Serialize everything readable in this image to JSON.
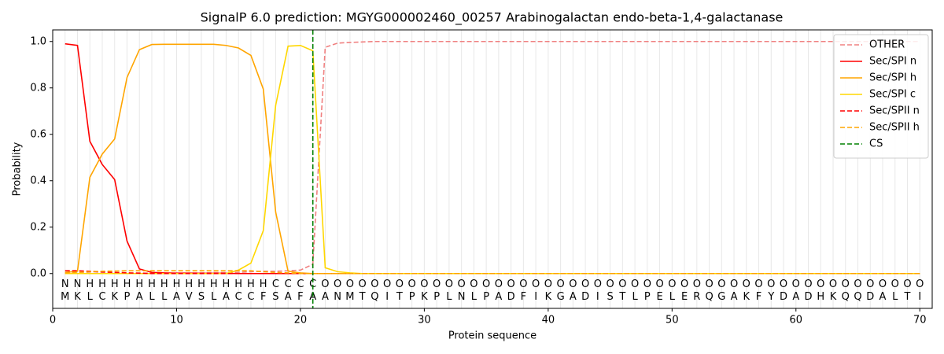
{
  "chart_data": {
    "type": "line",
    "title": "SignalP 6.0 prediction: MGYG000002460_00257 Arabinogalactan endo-beta-1,4-galactanase",
    "x_label": "Protein sequence",
    "y_label": "Probability",
    "x": [
      1,
      2,
      3,
      4,
      5,
      6,
      7,
      8,
      9,
      10,
      11,
      12,
      13,
      14,
      15,
      16,
      17,
      18,
      19,
      20,
      21,
      22,
      23,
      24,
      25,
      26,
      27,
      28,
      29,
      30,
      31,
      32,
      33,
      34,
      35,
      36,
      37,
      38,
      39,
      40,
      41,
      42,
      43,
      44,
      45,
      46,
      47,
      48,
      49,
      50,
      51,
      52,
      53,
      54,
      55,
      56,
      57,
      58,
      59,
      60,
      61,
      62,
      63,
      64,
      65,
      66,
      67,
      68,
      69,
      70
    ],
    "residues": [
      "M",
      "K",
      "L",
      "C",
      "K",
      "P",
      "A",
      "L",
      "L",
      "A",
      "V",
      "S",
      "L",
      "A",
      "C",
      "C",
      "F",
      "S",
      "A",
      "F",
      "A",
      "A",
      "N",
      "M",
      "T",
      "Q",
      "I",
      "T",
      "P",
      "K",
      "P",
      "L",
      "N",
      "L",
      "P",
      "A",
      "D",
      "F",
      "I",
      "K",
      "G",
      "A",
      "D",
      "I",
      "S",
      "T",
      "L",
      "P",
      "E",
      "L",
      "E",
      "R",
      "Q",
      "G",
      "A",
      "K",
      "F",
      "Y",
      "D",
      "A",
      "D",
      "H",
      "K",
      "Q",
      "Q",
      "D",
      "A",
      "L",
      "T",
      "I"
    ],
    "region_labels": [
      "N",
      "N",
      "H",
      "H",
      "H",
      "H",
      "H",
      "H",
      "H",
      "H",
      "H",
      "H",
      "H",
      "H",
      "H",
      "H",
      "H",
      "C",
      "C",
      "C",
      "C",
      "O",
      "O",
      "O",
      "O",
      "O",
      "O",
      "O",
      "O",
      "O",
      "O",
      "O",
      "O",
      "O",
      "O",
      "O",
      "O",
      "O",
      "O",
      "O",
      "O",
      "O",
      "O",
      "O",
      "O",
      "O",
      "O",
      "O",
      "O",
      "O",
      "O",
      "O",
      "O",
      "O",
      "O",
      "O",
      "O",
      "O",
      "O",
      "O",
      "O",
      "O",
      "O",
      "O",
      "O",
      "O",
      "O",
      "O",
      "O",
      "O"
    ],
    "region_colors": {
      "N": "#ff0000",
      "H": "#ffa500",
      "C": "#ffc800",
      "O": "#808080"
    },
    "series": [
      {
        "name": "OTHER",
        "color": "#f08080",
        "dash": true,
        "values": [
          0.001,
          0.001,
          0.001,
          0.001,
          0.001,
          0.001,
          0.001,
          0.001,
          0.001,
          0.001,
          0.002,
          0.003,
          0.004,
          0.004,
          0.005,
          0.008,
          0.01,
          0.01,
          0.012,
          0.015,
          0.04,
          0.975,
          0.993,
          0.996,
          0.998,
          1,
          1,
          1,
          1,
          1,
          1,
          1,
          1,
          1,
          1,
          1,
          1,
          1,
          1,
          1,
          1,
          1,
          1,
          1,
          1,
          1,
          1,
          1,
          1,
          1,
          1,
          1,
          1,
          1,
          1,
          1,
          1,
          1,
          1,
          1,
          1,
          1,
          1,
          1,
          1,
          1,
          1,
          1,
          1,
          1
        ]
      },
      {
        "name": "Sec/SPI n",
        "color": "#ff0000",
        "dash": false,
        "values": [
          0.99,
          0.983,
          0.57,
          0.47,
          0.405,
          0.14,
          0.02,
          0.005,
          0.003,
          0.002,
          0.002,
          0.001,
          0.001,
          0.001,
          0,
          0,
          0,
          0,
          0,
          0,
          0,
          0,
          0,
          0,
          0,
          0,
          0,
          0,
          0,
          0,
          0,
          0,
          0,
          0,
          0,
          0,
          0,
          0,
          0,
          0,
          0,
          0,
          0,
          0,
          0,
          0,
          0,
          0,
          0,
          0,
          0,
          0,
          0,
          0,
          0,
          0,
          0,
          0,
          0,
          0,
          0,
          0,
          0,
          0,
          0,
          0,
          0,
          0,
          0,
          0
        ]
      },
      {
        "name": "Sec/SPI h",
        "color": "#ffa500",
        "dash": false,
        "values": [
          0.005,
          0.01,
          0.415,
          0.515,
          0.58,
          0.845,
          0.965,
          0.987,
          0.988,
          0.988,
          0.988,
          0.988,
          0.988,
          0.983,
          0.972,
          0.94,
          0.795,
          0.265,
          0.01,
          0.003,
          0,
          0,
          0,
          0,
          0,
          0,
          0,
          0,
          0,
          0,
          0,
          0,
          0,
          0,
          0,
          0,
          0,
          0,
          0,
          0,
          0,
          0,
          0,
          0,
          0,
          0,
          0,
          0,
          0,
          0,
          0,
          0,
          0,
          0,
          0,
          0,
          0,
          0,
          0,
          0,
          0,
          0,
          0,
          0,
          0,
          0,
          0,
          0,
          0,
          0
        ]
      },
      {
        "name": "Sec/SPI c",
        "color": "#ffd700",
        "dash": false,
        "values": [
          0,
          0,
          0,
          0,
          0,
          0,
          0,
          0,
          0,
          0,
          0,
          0,
          0,
          0,
          0.015,
          0.045,
          0.185,
          0.725,
          0.98,
          0.983,
          0.96,
          0.025,
          0.008,
          0.003,
          0,
          0,
          0,
          0,
          0,
          0,
          0,
          0,
          0,
          0,
          0,
          0,
          0,
          0,
          0,
          0,
          0,
          0,
          0,
          0,
          0,
          0,
          0,
          0,
          0,
          0,
          0,
          0,
          0,
          0,
          0,
          0,
          0,
          0,
          0,
          0,
          0,
          0,
          0,
          0,
          0,
          0,
          0,
          0,
          0,
          0
        ]
      },
      {
        "name": "Sec/SPII n",
        "color": "#ff0000",
        "dash": true,
        "values": [
          0.012,
          0.012,
          0.01,
          0.007,
          0.005,
          0.003,
          0.002,
          0,
          0,
          0,
          0,
          0,
          0,
          0,
          0,
          0,
          0,
          0,
          0,
          0,
          0,
          0,
          0,
          0,
          0,
          0,
          0,
          0,
          0,
          0,
          0,
          0,
          0,
          0,
          0,
          0,
          0,
          0,
          0,
          0,
          0,
          0,
          0,
          0,
          0,
          0,
          0,
          0,
          0,
          0,
          0,
          0,
          0,
          0,
          0,
          0,
          0,
          0,
          0,
          0,
          0,
          0,
          0,
          0,
          0,
          0,
          0,
          0,
          0,
          0
        ]
      },
      {
        "name": "Sec/SPII h",
        "color": "#ffa500",
        "dash": true,
        "values": [
          0.003,
          0.005,
          0.008,
          0.01,
          0.011,
          0.012,
          0.012,
          0.012,
          0.012,
          0.012,
          0.012,
          0.012,
          0.012,
          0.012,
          0.012,
          0.012,
          0.008,
          0.005,
          0.003,
          0,
          0,
          0,
          0,
          0,
          0,
          0,
          0,
          0,
          0,
          0,
          0,
          0,
          0,
          0,
          0,
          0,
          0,
          0,
          0,
          0,
          0,
          0,
          0,
          0,
          0,
          0,
          0,
          0,
          0,
          0,
          0,
          0,
          0,
          0,
          0,
          0,
          0,
          0,
          0,
          0,
          0,
          0,
          0,
          0,
          0,
          0,
          0,
          0,
          0,
          0
        ]
      }
    ],
    "cleavage_site": {
      "name": "CS",
      "color": "#008000",
      "x": 21
    },
    "xlim": [
      0,
      71
    ],
    "xticks": [
      0,
      10,
      20,
      30,
      40,
      50,
      60,
      70
    ],
    "ylim": [
      -0.15,
      1.05
    ],
    "yticks": [
      {
        "value": 0,
        "label": "0.0"
      },
      0.2,
      0.4,
      0.6,
      0.8,
      {
        "value": 1,
        "label": "1.0"
      }
    ],
    "grid": true,
    "legend": "upper right"
  }
}
